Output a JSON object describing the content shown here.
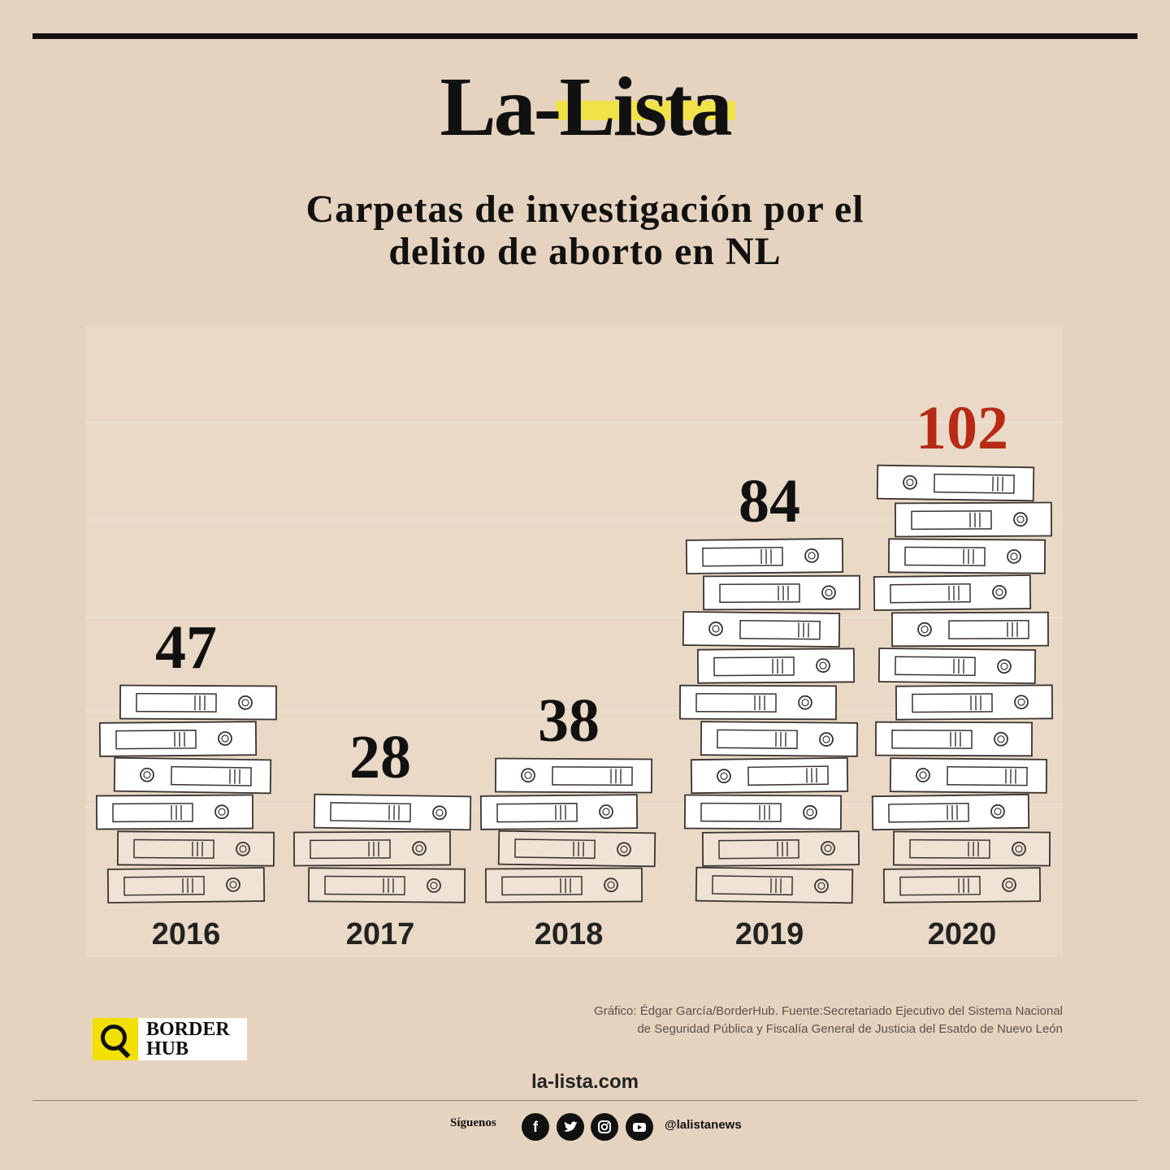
{
  "brand": {
    "logo_part1": "La-",
    "logo_part2": "Lista",
    "highlight_color": "#f1e24a"
  },
  "chart_data": {
    "type": "bar",
    "title_line1": "Carpetas de investigación por el",
    "title_line2": "delito de aborto en NL",
    "categories": [
      "2016",
      "2017",
      "2018",
      "2019",
      "2020"
    ],
    "values": [
      47,
      28,
      38,
      84,
      102
    ],
    "value_labels": [
      "47",
      "28",
      "38",
      "84",
      "102"
    ],
    "highlight_index": 4,
    "highlight_color": "#b82a14",
    "ylim": [
      0,
      110
    ],
    "xlabel": "",
    "ylabel": ""
  },
  "credit": {
    "line1": "Gráfico: Édgar García/BorderHub. Fuente:Secretariado Ejecutivo del Sistema Nacional",
    "line2": "de Seguridad Pública y Fiscalía General de Justicia del Esatdo de Nuevo León"
  },
  "borderhub": {
    "line1": "BORDER",
    "line2": "HUB"
  },
  "footer": {
    "site": "la-lista.com",
    "follow": "Síguenos",
    "handle": "@lalistanews",
    "icons": [
      "facebook-icon",
      "twitter-icon",
      "instagram-icon",
      "youtube-icon"
    ]
  }
}
